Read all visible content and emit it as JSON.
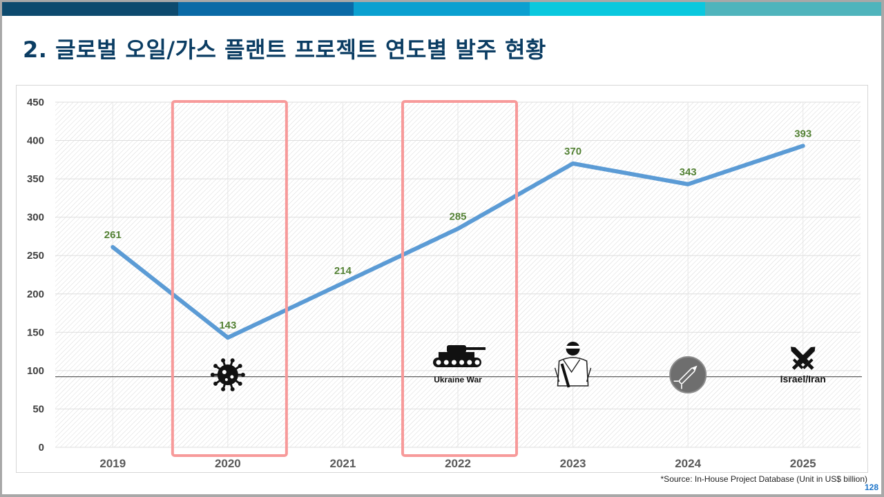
{
  "slide": {
    "title": "2. 글로벌 오일/가스 플랜트 프로젝트 연도별 발주 현황",
    "source": "*Source: In-House Project Database (Unit in US$ billion)",
    "page_number": "128",
    "topbar_colors": [
      "#0d4a6e",
      "#0a6aa6",
      "#0aa0d0",
      "#0ac8de",
      "#4fb4bc"
    ]
  },
  "colors": {
    "line": "#5b9bd5",
    "data_label": "#548235",
    "highlight_box": "#f79a9a",
    "title": "#0b3d63"
  },
  "chart_data": {
    "type": "line",
    "categories": [
      "2019",
      "2020",
      "2021",
      "2022",
      "2023",
      "2024",
      "2025"
    ],
    "series": [
      {
        "values": [
          261,
          143,
          214,
          285,
          370,
          343,
          393
        ]
      }
    ],
    "ylim": [
      0,
      450
    ],
    "yticks": [
      0,
      50,
      100,
      150,
      200,
      250,
      300,
      350,
      400,
      450
    ],
    "grid": true,
    "reference_line": 92,
    "highlighted_categories": [
      "2020",
      "2022"
    ],
    "annotations": [
      {
        "category": "2020",
        "icon": "virus-icon",
        "label": ""
      },
      {
        "category": "2022",
        "icon": "tank-icon",
        "label": "Ukraine War"
      },
      {
        "category": "2023",
        "icon": "soldier-icon",
        "label": ""
      },
      {
        "category": "2024",
        "icon": "missile-icon",
        "label": ""
      },
      {
        "category": "2025",
        "icon": "crossed-swords-icon",
        "label": "Israel/Iran"
      }
    ]
  }
}
